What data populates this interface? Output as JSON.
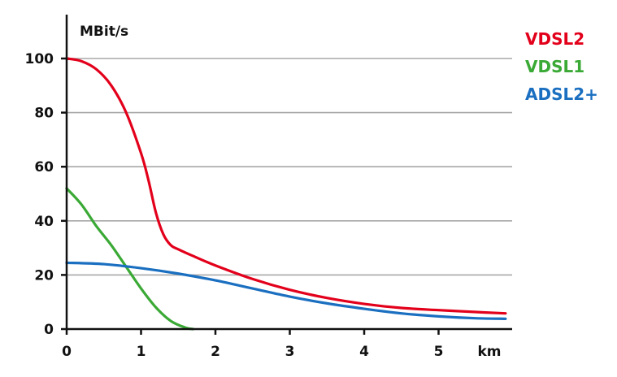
{
  "chart_data": {
    "type": "line",
    "xlabel": "km",
    "ylabel": "MBit/s",
    "xlim": [
      0,
      5.9
    ],
    "ylim": [
      0,
      115
    ],
    "x_ticks": [
      "0",
      "1",
      "2",
      "3",
      "4",
      "5"
    ],
    "y_ticks": [
      "0",
      "20",
      "40",
      "60",
      "80",
      "100"
    ],
    "grid": "horizontal",
    "legend_position": "right",
    "series": [
      {
        "name": "VDSL2",
        "color": "#e3001b",
        "x": [
          0,
          0.2,
          0.4,
          0.6,
          0.8,
          1.0,
          1.1,
          1.2,
          1.3,
          1.4,
          1.5,
          1.7,
          2.0,
          2.5,
          3.0,
          3.5,
          4.0,
          4.5,
          5.0,
          5.5,
          5.9
        ],
        "y": [
          100,
          99,
          96,
          90,
          80,
          65,
          55,
          43,
          35,
          31,
          29.5,
          27,
          23.5,
          18.5,
          14.5,
          11.5,
          9.3,
          7.8,
          7,
          6.3,
          5.8
        ]
      },
      {
        "name": "VDSL1",
        "color": "#3aa935",
        "x": [
          0,
          0.2,
          0.4,
          0.6,
          0.8,
          1.0,
          1.2,
          1.4,
          1.6,
          1.7
        ],
        "y": [
          52,
          46,
          38,
          31,
          23,
          15,
          8,
          3,
          0.5,
          0
        ]
      },
      {
        "name": "ADSL2+",
        "color": "#1a6fc0",
        "x": [
          0,
          0.5,
          1.0,
          1.5,
          2.0,
          2.5,
          3.0,
          3.5,
          4.0,
          4.5,
          5.0,
          5.5,
          5.9
        ],
        "y": [
          24.5,
          24,
          22.5,
          20.5,
          18,
          15,
          12,
          9.5,
          7.5,
          5.8,
          4.7,
          4,
          3.8
        ]
      }
    ]
  }
}
